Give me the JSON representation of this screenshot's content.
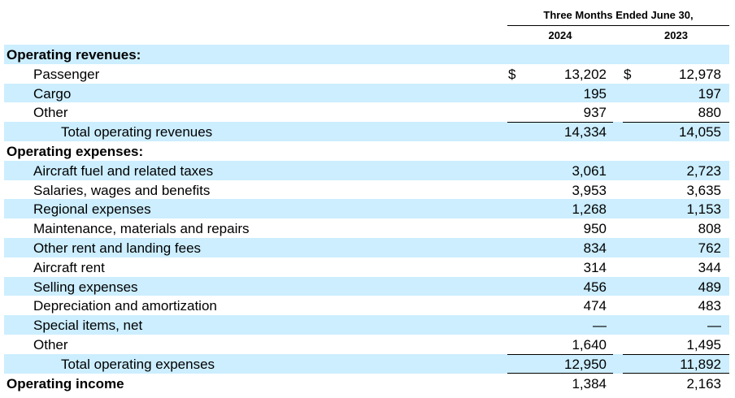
{
  "header": {
    "period": "Three Months Ended June 30,",
    "year1": "2024",
    "year2": "2023"
  },
  "colors": {
    "row_shade": "#cceeff"
  },
  "rows": [
    {
      "label": "Operating revenues:",
      "level": 0,
      "v1": "",
      "v2": "",
      "shaded": true
    },
    {
      "label": "Passenger",
      "level": 1,
      "cur1": "$",
      "v1": "13,202",
      "cur2": "$",
      "v2": "12,978",
      "shaded": false
    },
    {
      "label": "Cargo",
      "level": 1,
      "v1": "195",
      "v2": "197",
      "shaded": true
    },
    {
      "label": "Other",
      "level": 1,
      "v1": "937",
      "v2": "880",
      "shaded": false
    },
    {
      "label": "Total operating revenues",
      "level": 2,
      "v1": "14,334",
      "v2": "14,055",
      "shaded": true,
      "line_top": true
    },
    {
      "label": "Operating expenses:",
      "level": 0,
      "v1": "",
      "v2": "",
      "shaded": false
    },
    {
      "label": "Aircraft fuel and related taxes",
      "level": 1,
      "v1": "3,061",
      "v2": "2,723",
      "shaded": true
    },
    {
      "label": "Salaries, wages and benefits",
      "level": 1,
      "v1": "3,953",
      "v2": "3,635",
      "shaded": false
    },
    {
      "label": "Regional expenses",
      "level": 1,
      "v1": "1,268",
      "v2": "1,153",
      "shaded": true
    },
    {
      "label": "Maintenance, materials and repairs",
      "level": 1,
      "v1": "950",
      "v2": "808",
      "shaded": false
    },
    {
      "label": "Other rent and landing fees",
      "level": 1,
      "v1": "834",
      "v2": "762",
      "shaded": true
    },
    {
      "label": "Aircraft rent",
      "level": 1,
      "v1": "314",
      "v2": "344",
      "shaded": false
    },
    {
      "label": "Selling expenses",
      "level": 1,
      "v1": "456",
      "v2": "489",
      "shaded": true
    },
    {
      "label": "Depreciation and amortization",
      "level": 1,
      "v1": "474",
      "v2": "483",
      "shaded": false
    },
    {
      "label": "Special items, net",
      "level": 1,
      "v1": "—",
      "v2": "—",
      "shaded": true
    },
    {
      "label": "Other",
      "level": 1,
      "v1": "1,640",
      "v2": "1,495",
      "shaded": false
    },
    {
      "label": "Total operating expenses",
      "level": 2,
      "v1": "12,950",
      "v2": "11,892",
      "shaded": true,
      "line_top": true,
      "line_bottom": true
    },
    {
      "label": "Operating income",
      "level": 0,
      "v1": "1,384",
      "v2": "2,163",
      "shaded": false
    }
  ]
}
